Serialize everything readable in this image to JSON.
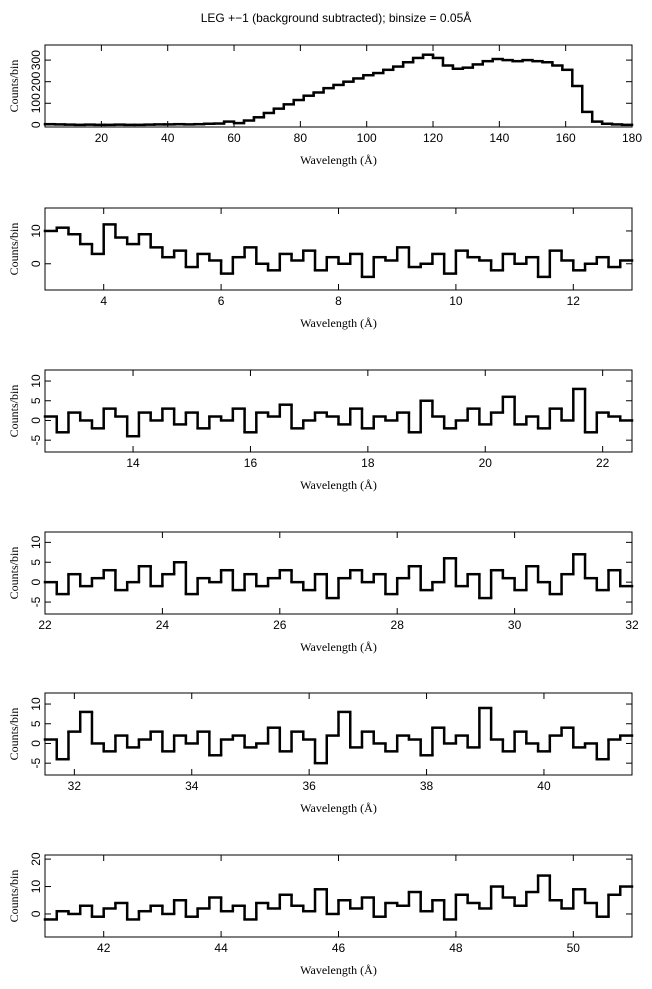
{
  "title": "LEG +−1 (background subtracted); binsize = 0.05Å",
  "chart_data": [
    {
      "type": "histogram",
      "xlabel": "Wavelength (Å)",
      "ylabel": "Counts/bin",
      "color": "#000000",
      "bins": [
        3,
        6,
        9,
        12,
        15,
        18,
        21,
        24,
        27,
        30,
        33,
        36,
        39,
        42,
        45,
        48,
        51,
        54,
        57,
        60,
        63,
        66,
        69,
        72,
        75,
        78,
        81,
        84,
        87,
        90,
        93,
        96,
        99,
        102,
        105,
        108,
        111,
        114,
        117,
        120,
        123,
        126,
        129,
        132,
        135,
        138,
        141,
        144,
        147,
        150,
        153,
        156,
        159,
        162,
        165,
        168,
        171,
        174,
        177,
        180
      ],
      "values": [
        3,
        2,
        1,
        0,
        1,
        0,
        0,
        1,
        0,
        0,
        1,
        2,
        2,
        3,
        2,
        3,
        5,
        6,
        15,
        8,
        20,
        35,
        55,
        75,
        95,
        115,
        135,
        150,
        170,
        185,
        200,
        215,
        230,
        240,
        255,
        270,
        290,
        310,
        325,
        310,
        275,
        260,
        265,
        280,
        295,
        305,
        300,
        295,
        300,
        295,
        290,
        275,
        255,
        180,
        60,
        15,
        5,
        2,
        0
      ],
      "xlim": [
        3,
        180
      ],
      "ylim": [
        -10,
        370
      ],
      "xticks": [
        20,
        40,
        60,
        80,
        100,
        120,
        140,
        160,
        180
      ],
      "yticks": [
        0,
        100,
        200,
        300
      ]
    },
    {
      "type": "histogram",
      "xlabel": "Wavelength (Å)",
      "ylabel": "Counts/bin",
      "color": "#000000",
      "bins": [
        3,
        3.2,
        3.4,
        3.6,
        3.8,
        4,
        4.2,
        4.4,
        4.6,
        4.8,
        5,
        5.2,
        5.4,
        5.6,
        5.8,
        6,
        6.2,
        6.4,
        6.6,
        6.8,
        7,
        7.2,
        7.4,
        7.6,
        7.8,
        8,
        8.2,
        8.4,
        8.6,
        8.8,
        9,
        9.2,
        9.4,
        9.6,
        9.8,
        10,
        10.2,
        10.4,
        10.6,
        10.8,
        11,
        11.2,
        11.4,
        11.6,
        11.8,
        12,
        12.2,
        12.4,
        12.6,
        12.8,
        13
      ],
      "values": [
        10,
        11,
        9,
        6,
        3,
        12,
        8,
        6,
        9,
        5,
        2,
        4,
        -1,
        3,
        1,
        -3,
        2,
        5,
        0,
        -2,
        3,
        1,
        4,
        -2,
        2,
        0,
        3,
        -4,
        2,
        1,
        5,
        -1,
        0,
        3,
        -3,
        4,
        2,
        1,
        -2,
        3,
        0,
        2,
        -4,
        4,
        1,
        -2,
        0,
        2,
        -1,
        1
      ],
      "xlim": [
        3,
        13
      ],
      "ylim": [
        -8,
        17
      ],
      "xticks": [
        4,
        6,
        8,
        10,
        12
      ],
      "yticks": [
        0,
        10
      ]
    },
    {
      "type": "histogram",
      "xlabel": "Wavelength (Å)",
      "ylabel": "Counts/bin",
      "color": "#000000",
      "bins": [
        12.5,
        12.7,
        12.9,
        13.1,
        13.3,
        13.5,
        13.7,
        13.9,
        14.1,
        14.3,
        14.5,
        14.7,
        14.9,
        15.1,
        15.3,
        15.5,
        15.7,
        15.9,
        16.1,
        16.3,
        16.5,
        16.7,
        16.9,
        17.1,
        17.3,
        17.5,
        17.7,
        17.9,
        18.1,
        18.3,
        18.5,
        18.7,
        18.9,
        19.1,
        19.3,
        19.5,
        19.7,
        19.9,
        20.1,
        20.3,
        20.5,
        20.7,
        20.9,
        21.1,
        21.3,
        21.5,
        21.7,
        21.9,
        22.1,
        22.3,
        22.5
      ],
      "values": [
        1,
        -3,
        2,
        0,
        -2,
        3,
        1,
        -4,
        2,
        0,
        3,
        -1,
        2,
        -2,
        1,
        0,
        3,
        -3,
        2,
        1,
        4,
        -2,
        0,
        2,
        1,
        -1,
        3,
        -2,
        1,
        0,
        2,
        -3,
        5,
        1,
        -2,
        0,
        3,
        -1,
        2,
        6,
        -1,
        1,
        -2,
        3,
        0,
        8,
        -3,
        2,
        1,
        0
      ],
      "xlim": [
        12.5,
        22.5
      ],
      "ylim": [
        -8,
        12.8
      ],
      "xticks": [
        14,
        16,
        18,
        20,
        22
      ],
      "yticks": [
        -5,
        0,
        5,
        10
      ]
    },
    {
      "type": "histogram",
      "xlabel": "Wavelength (Å)",
      "ylabel": "Counts/bin",
      "color": "#000000",
      "bins": [
        22,
        22.2,
        22.4,
        22.6,
        22.8,
        23,
        23.2,
        23.4,
        23.6,
        23.8,
        24,
        24.2,
        24.4,
        24.6,
        24.8,
        25,
        25.2,
        25.4,
        25.6,
        25.8,
        26,
        26.2,
        26.4,
        26.6,
        26.8,
        27,
        27.2,
        27.4,
        27.6,
        27.8,
        28,
        28.2,
        28.4,
        28.6,
        28.8,
        29,
        29.2,
        29.4,
        29.6,
        29.8,
        30,
        30.2,
        30.4,
        30.6,
        30.8,
        31,
        31.2,
        31.4,
        31.6,
        31.8,
        32
      ],
      "values": [
        0,
        -3,
        2,
        -1,
        1,
        3,
        -2,
        0,
        4,
        -1,
        2,
        5,
        -3,
        1,
        0,
        3,
        -2,
        2,
        -1,
        1,
        3,
        0,
        -2,
        2,
        -4,
        1,
        3,
        0,
        2,
        -3,
        1,
        4,
        -2,
        0,
        6,
        -1,
        2,
        -4,
        3,
        1,
        -2,
        4,
        0,
        -3,
        2,
        7,
        1,
        -2,
        3,
        -1
      ],
      "xlim": [
        22,
        32
      ],
      "ylim": [
        -8,
        12.6
      ],
      "xticks": [
        22,
        24,
        26,
        28,
        30,
        32
      ],
      "yticks": [
        -5,
        0,
        5,
        10
      ]
    },
    {
      "type": "histogram",
      "xlabel": "Wavelength (Å)",
      "ylabel": "Counts/bin",
      "color": "#000000",
      "bins": [
        31.5,
        31.7,
        31.9,
        32.1,
        32.3,
        32.5,
        32.7,
        32.9,
        33.1,
        33.3,
        33.5,
        33.7,
        33.9,
        34.1,
        34.3,
        34.5,
        34.7,
        34.9,
        35.1,
        35.3,
        35.5,
        35.7,
        35.9,
        36.1,
        36.3,
        36.5,
        36.7,
        36.9,
        37.1,
        37.3,
        37.5,
        37.7,
        37.9,
        38.1,
        38.3,
        38.5,
        38.7,
        38.9,
        39.1,
        39.3,
        39.5,
        39.7,
        39.9,
        40.1,
        40.3,
        40.5,
        40.7,
        40.9,
        41.1,
        41.3,
        41.5
      ],
      "values": [
        1,
        -4,
        3,
        8,
        0,
        -2,
        2,
        -1,
        1,
        3,
        -2,
        2,
        0,
        3,
        -3,
        1,
        2,
        -1,
        0,
        4,
        -2,
        3,
        1,
        -5,
        2,
        8,
        -1,
        3,
        0,
        -2,
        2,
        1,
        -3,
        4,
        0,
        2,
        -1,
        9,
        1,
        -2,
        3,
        0,
        -2,
        2,
        4,
        -1,
        0,
        -4,
        1,
        2
      ],
      "xlim": [
        31.5,
        41.5
      ],
      "ylim": [
        -8,
        12.8
      ],
      "xticks": [
        32,
        34,
        36,
        38,
        40
      ],
      "yticks": [
        -5,
        0,
        5,
        10
      ]
    },
    {
      "type": "histogram",
      "xlabel": "Wavelength (Å)",
      "ylabel": "Counts/bin",
      "color": "#000000",
      "bins": [
        41,
        41.2,
        41.4,
        41.6,
        41.8,
        42,
        42.2,
        42.4,
        42.6,
        42.8,
        43,
        43.2,
        43.4,
        43.6,
        43.8,
        44,
        44.2,
        44.4,
        44.6,
        44.8,
        45,
        45.2,
        45.4,
        45.6,
        45.8,
        46,
        46.2,
        46.4,
        46.6,
        46.8,
        47,
        47.2,
        47.4,
        47.6,
        47.8,
        48,
        48.2,
        48.4,
        48.6,
        48.8,
        49,
        49.2,
        49.4,
        49.6,
        49.8,
        50,
        50.2,
        50.4,
        50.6,
        50.8,
        51
      ],
      "values": [
        -2,
        1,
        0,
        3,
        -1,
        2,
        4,
        -2,
        1,
        3,
        0,
        5,
        -1,
        2,
        6,
        1,
        3,
        -2,
        4,
        2,
        7,
        3,
        1,
        9,
        0,
        5,
        2,
        6,
        -1,
        4,
        3,
        8,
        1,
        5,
        -2,
        7,
        4,
        2,
        10,
        6,
        3,
        8,
        14,
        5,
        2,
        9,
        4,
        -1,
        7,
        10
      ],
      "xlim": [
        41,
        51
      ],
      "ylim": [
        -8.4,
        21.5
      ],
      "xticks": [
        42,
        44,
        46,
        48,
        50
      ],
      "yticks": [
        0,
        10,
        20
      ]
    }
  ]
}
